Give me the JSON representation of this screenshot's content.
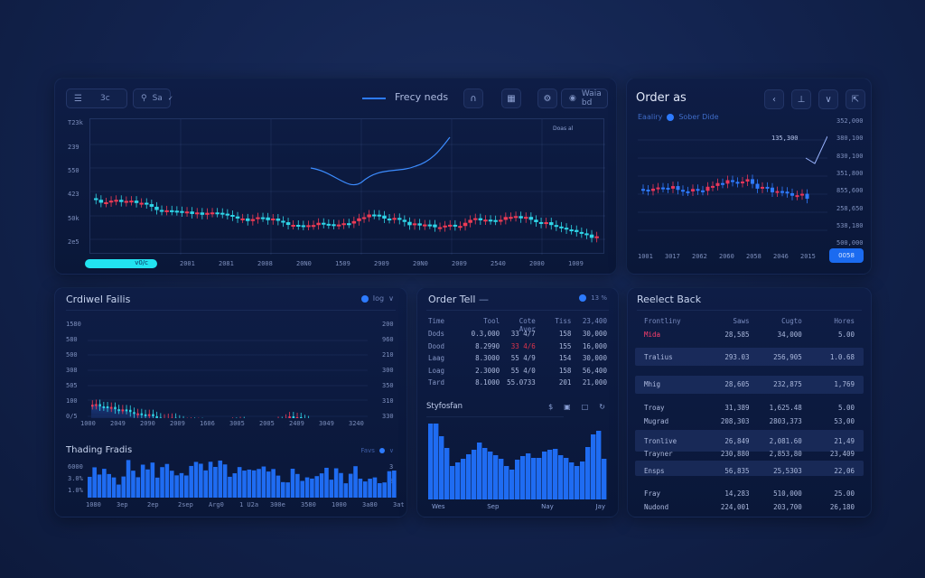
{
  "colors": {
    "up": "#2fd6e8",
    "down": "#ef3b55",
    "accent": "#2d7bff",
    "bar": "#1f6cf2",
    "progress": "#22e3f0"
  },
  "main_chart": {
    "toolbar": {
      "menu_label": "3c",
      "symbol_label": "Sa",
      "legend_label": "Frecy neds",
      "account_label": "Waia bd"
    },
    "y_ticks": [
      "T23k",
      "239",
      "550",
      "423",
      "50k",
      "2e5"
    ],
    "x_ticks": [
      "2001",
      "2081",
      "2008",
      "20N0",
      "1509",
      "2909",
      "20N0",
      "2009",
      "2540",
      "2000",
      "1009"
    ],
    "progress_label": "v0/c",
    "annotation": "Doas al"
  },
  "order_book": {
    "title": "Order as",
    "legend_left": "Eaaliry",
    "legend_right": "Sober Dide",
    "price_annotation": "135,300",
    "y_ticks": [
      "352,000",
      "380,100",
      "830,100",
      "351,800",
      "855,600",
      "258,650",
      "538,180",
      "500,000"
    ],
    "x_ticks": [
      "1001",
      "3017",
      "2062",
      "2060",
      "2058",
      "2046",
      "2015"
    ],
    "action_button": "0058"
  },
  "candles_panel": {
    "title": "Crdiwel Failis",
    "selector_label": "Iog",
    "y_ticks_left": [
      "1580",
      "580",
      "500",
      "308",
      "505",
      "100",
      "0/5"
    ],
    "y_ticks_right": [
      "200",
      "960",
      "210",
      "300",
      "350",
      "310",
      "330"
    ],
    "x_ticks": [
      "1000",
      "2049",
      "2090",
      "2009",
      "1606",
      "3005",
      "2005",
      "2409",
      "3049",
      "3240"
    ]
  },
  "volume_panel": {
    "title": "Thading Fradis",
    "selector_label": "Favs",
    "y_ticks_left": [
      "6000",
      "3.0%",
      "1.0%"
    ],
    "y_ticks_right": [
      "3",
      "8"
    ],
    "x_ticks": [
      "1080",
      "3ep",
      "2ep",
      "2sep",
      "Arg0",
      "1 U2a",
      "300e",
      "3580",
      "1000",
      "3a80",
      "3at"
    ]
  },
  "order_table": {
    "title": "Order Tell",
    "selector_label": "13 %",
    "headers": [
      "Time",
      "Tool",
      "Cote Aver",
      "Tiss",
      "23,400"
    ],
    "rows": [
      {
        "name": "Dods",
        "a": "0.3,000",
        "b": "33   4/7",
        "c": "158",
        "d": "30,000",
        "red": false
      },
      {
        "name": "Dood",
        "a": "8.2990",
        "b": "33   4/6",
        "c": "155",
        "d": "16,000",
        "red": true
      },
      {
        "name": "Laag",
        "a": "8.3000",
        "b": "55   4/9",
        "c": "154",
        "d": "30,000",
        "red": false
      },
      {
        "name": "Loag",
        "a": "2.3000",
        "b": "55   4/0",
        "c": "158",
        "d": "56,400",
        "red": false
      },
      {
        "name": "Tard",
        "a": "8.1000",
        "b": "55.0733",
        "c": "201",
        "d": "21,000",
        "red": false
      }
    ],
    "chart_title": "Styfosfan"
  },
  "market_panel": {
    "title": "Reelect Back",
    "headers": [
      "Frontliny",
      "Saws",
      "Cugto",
      "Hores"
    ],
    "rows": [
      {
        "name": "Mida",
        "a": "28,585",
        "b": "34,000",
        "c": "5.00",
        "red": true
      },
      {
        "name": "Tralius",
        "a": "293.03",
        "b": "256,905",
        "c": "1.0.68",
        "red": false
      },
      {
        "name": "Mhig",
        "a": "28,605",
        "b": "232,875",
        "c": "1,769",
        "red": false
      },
      {
        "name": "Troay",
        "a": "31,389",
        "b": "1,625.48",
        "c": "5.00",
        "red": false
      },
      {
        "name": "Mugrad",
        "a": "208,303",
        "b": "2803,373",
        "c": "53,00",
        "red": false
      },
      {
        "name": "Tronlive",
        "a": "26,849",
        "b": "2,081.60",
        "c": "21,49",
        "red": false
      },
      {
        "name": "Trayner",
        "a": "230,880",
        "b": "2,853,80",
        "c": "23,409",
        "red": false
      },
      {
        "name": "Ensps",
        "a": "56,835",
        "b": "25,5303",
        "c": "22,06",
        "red": false
      },
      {
        "name": "Fray",
        "a": "14,283",
        "b": "510,000",
        "c": "25.00",
        "red": false
      },
      {
        "name": "Nudond",
        "a": "224,001",
        "b": "203,700",
        "c": "26,180",
        "red": false
      }
    ]
  }
}
